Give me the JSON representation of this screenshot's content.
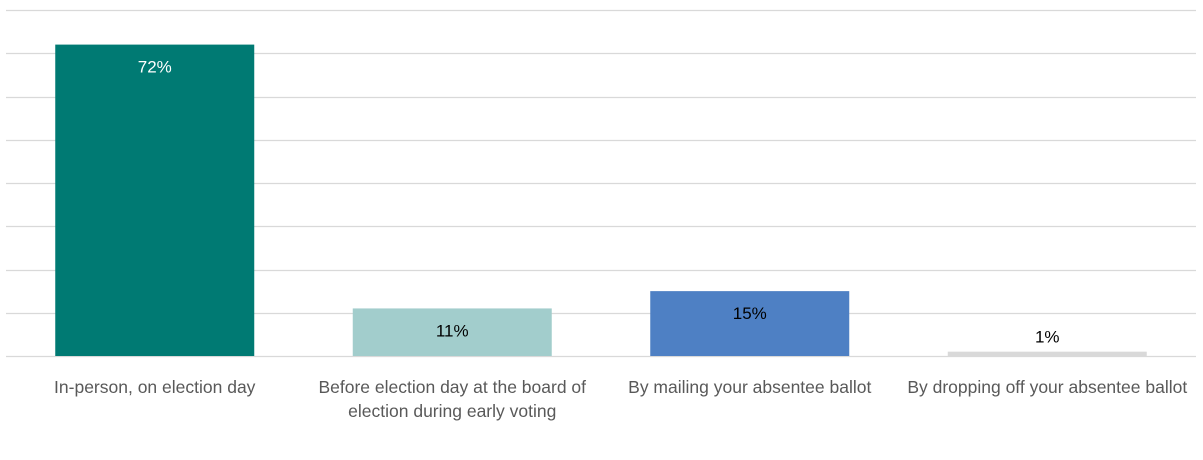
{
  "chart_data": {
    "type": "bar",
    "categories": [
      "In-person, on election day",
      "Before election day at the board of election during early voting",
      "By mailing your absentee ballot",
      "By dropping off your absentee ballot"
    ],
    "values": [
      72,
      11,
      15,
      1
    ],
    "value_labels": [
      "72%",
      "11%",
      "15%",
      "1%"
    ],
    "unit": "%",
    "bar_colors": [
      "#007A73",
      "#A2CDCC",
      "#4E80C4",
      "#D9D9D9"
    ],
    "label_colors": [
      "#ffffff",
      "#000000",
      "#000000",
      "#000000"
    ],
    "title": "",
    "xlabel": "",
    "ylabel": "",
    "ylim": [
      0,
      80
    ],
    "grid": true,
    "grid_step": 10,
    "legend": "none"
  }
}
